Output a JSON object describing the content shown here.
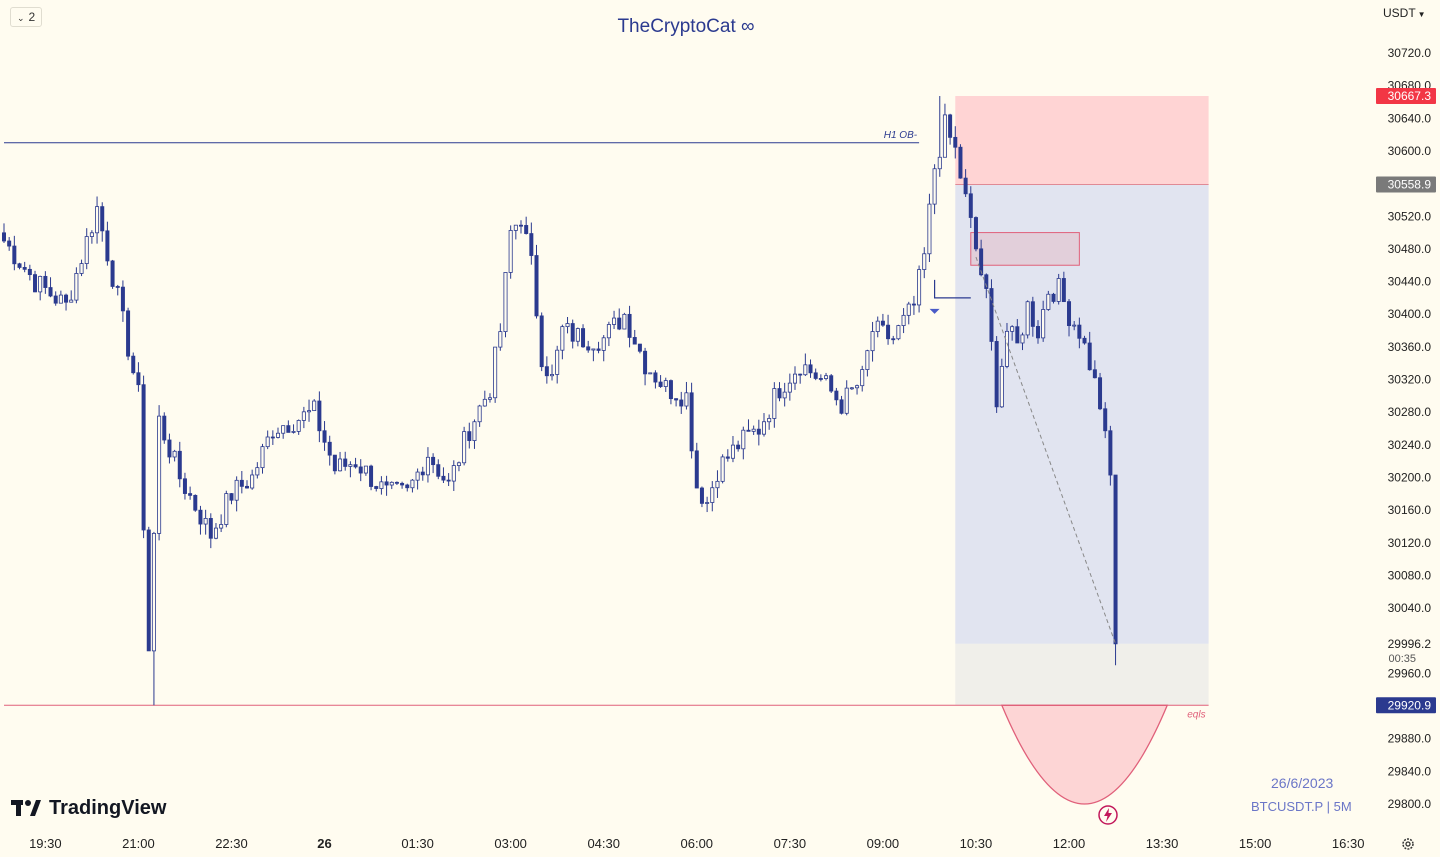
{
  "header": {
    "title": "TheCryptoCat ∞",
    "layout_count": "2",
    "currency": "USDT"
  },
  "watermark": {
    "brand": "TradingView",
    "date": "26/6/2023",
    "symbol": "BTCUSDT.P | 5M"
  },
  "colors": {
    "background": "#fffcf0",
    "candle": "#2b3a8f",
    "stop_zone": "#ffd4d4",
    "target_zone": "#e1e4f0",
    "price_tag_red": "#f23645",
    "price_tag_gray": "#7a7a7a",
    "price_tag_blue": "#2b3a8f",
    "eqls_line": "#e0607a"
  },
  "chart_data": {
    "type": "candlestick",
    "symbol": "BTCUSDT.P",
    "interval": "5M",
    "ylim": [
      29780,
      30740
    ],
    "y_ticks": [
      30720.0,
      30680.0,
      30640.0,
      30600.0,
      30560.0,
      30520.0,
      30480.0,
      30440.0,
      30400.0,
      30360.0,
      30320.0,
      30280.0,
      30240.0,
      30200.0,
      30160.0,
      30120.0,
      30080.0,
      30040.0,
      30000.0,
      29960.0,
      29920.0,
      29880.0,
      29840.0,
      29800.0
    ],
    "x_ticks": [
      {
        "label": "19:30",
        "i": 8
      },
      {
        "label": "21:00",
        "i": 26
      },
      {
        "label": "22:30",
        "i": 44
      },
      {
        "label": "26",
        "i": 62,
        "bold": true
      },
      {
        "label": "01:30",
        "i": 80
      },
      {
        "label": "03:00",
        "i": 98
      },
      {
        "label": "04:30",
        "i": 116
      },
      {
        "label": "06:00",
        "i": 134
      },
      {
        "label": "07:30",
        "i": 152
      },
      {
        "label": "09:00",
        "i": 170
      },
      {
        "label": "10:30",
        "i": 188
      },
      {
        "label": "12:00",
        "i": 206
      },
      {
        "label": "13:30",
        "i": 224
      },
      {
        "label": "15:00",
        "i": 242
      },
      {
        "label": "16:30",
        "i": 260
      }
    ],
    "close_path": [
      [
        0,
        30490
      ],
      [
        6,
        30440
      ],
      [
        12,
        30410
      ],
      [
        18,
        30530
      ],
      [
        22,
        30420
      ],
      [
        26,
        30300
      ],
      [
        28,
        29990
      ],
      [
        30,
        30270
      ],
      [
        34,
        30200
      ],
      [
        40,
        30130
      ],
      [
        44,
        30180
      ],
      [
        48,
        30200
      ],
      [
        52,
        30260
      ],
      [
        60,
        30280
      ],
      [
        64,
        30210
      ],
      [
        68,
        30220
      ],
      [
        74,
        30180
      ],
      [
        78,
        30180
      ],
      [
        82,
        30230
      ],
      [
        86,
        30190
      ],
      [
        90,
        30260
      ],
      [
        94,
        30310
      ],
      [
        96,
        30380
      ],
      [
        98,
        30500
      ],
      [
        100,
        30520
      ],
      [
        102,
        30460
      ],
      [
        104,
        30350
      ],
      [
        106,
        30320
      ],
      [
        108,
        30380
      ],
      [
        112,
        30370
      ],
      [
        116,
        30370
      ],
      [
        120,
        30400
      ],
      [
        124,
        30340
      ],
      [
        128,
        30310
      ],
      [
        132,
        30300
      ],
      [
        134,
        30190
      ],
      [
        136,
        30170
      ],
      [
        138,
        30210
      ],
      [
        142,
        30240
      ],
      [
        146,
        30260
      ],
      [
        150,
        30310
      ],
      [
        154,
        30340
      ],
      [
        158,
        30320
      ],
      [
        162,
        30290
      ],
      [
        166,
        30320
      ],
      [
        168,
        30380
      ],
      [
        172,
        30370
      ],
      [
        176,
        30410
      ],
      [
        178,
        30470
      ],
      [
        180,
        30580
      ],
      [
        182,
        30630
      ],
      [
        184,
        30600
      ],
      [
        186,
        30540
      ],
      [
        188,
        30480
      ],
      [
        190,
        30420
      ],
      [
        192,
        30300
      ],
      [
        194,
        30380
      ],
      [
        196,
        30360
      ],
      [
        198,
        30410
      ],
      [
        200,
        30380
      ],
      [
        202,
        30430
      ],
      [
        204,
        30430
      ],
      [
        206,
        30400
      ],
      [
        208,
        30380
      ],
      [
        210,
        30340
      ],
      [
        212,
        30290
      ],
      [
        214,
        30200
      ],
      [
        215,
        29996
      ]
    ],
    "last_price": {
      "value": "29996.2",
      "countdown": "00:35"
    },
    "price_tags": [
      {
        "value": "30667.3",
        "price": 30667.3,
        "color": "#f23645"
      },
      {
        "value": "30558.9",
        "price": 30558.9,
        "color": "#7a7a7a"
      },
      {
        "value": "29920.9",
        "price": 29920.9,
        "color": "#2b3a8f"
      }
    ],
    "position": {
      "type": "short",
      "entry": 30558.9,
      "stop": 30667.3,
      "target": 29996.2,
      "start_i": 184,
      "end_i": 233
    },
    "annotations": [
      {
        "label": "H1 OB-",
        "price": 30610,
        "from_i": 0,
        "to_i": 177
      },
      {
        "label": "eqls",
        "price": 29920.9,
        "from_i": 0,
        "to_i": 233
      }
    ],
    "fvg_box": {
      "top": 30500,
      "bottom": 30460,
      "from_i": 187,
      "to_i": 208
    },
    "curve": {
      "from_i": 193,
      "to_i": 225,
      "bottom": 29800,
      "price": 29920.9
    },
    "entry_marker": {
      "i": 180,
      "price": 30420,
      "to_i": 187
    },
    "trend_arrow": {
      "from_i": 188,
      "from_price": 30470,
      "to_i": 215,
      "to_price": 29996.2
    }
  }
}
